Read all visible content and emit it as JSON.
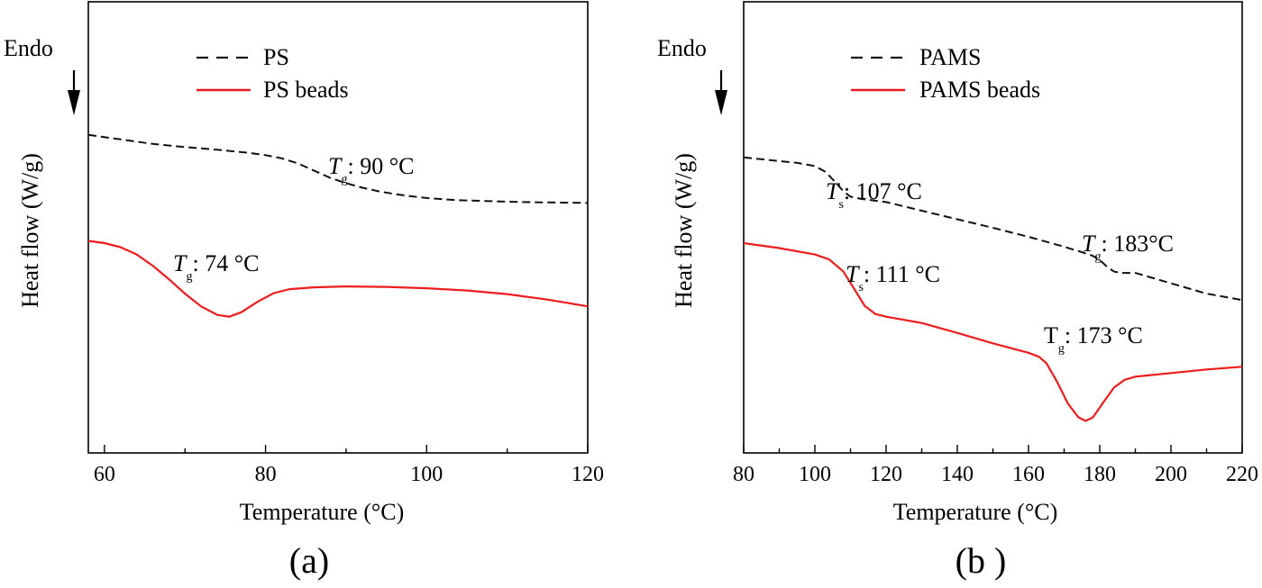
{
  "chart_data": [
    {
      "type": "line",
      "panel_label": "(a)",
      "xlabel": "Temperature (°C)",
      "ylabel": "Heat flow (W/g)",
      "xlim": [
        58,
        120
      ],
      "ylim": [
        0,
        100
      ],
      "x_ticks": [
        60,
        80,
        100,
        120
      ],
      "endo_label": "Endo",
      "series": [
        {
          "name": "PS",
          "style": "dashed",
          "color": "#111111",
          "x": [
            58,
            62,
            66,
            70,
            74,
            78,
            80,
            82,
            84,
            86,
            88,
            90,
            92,
            94,
            96,
            98,
            100,
            104,
            108,
            112,
            116,
            120
          ],
          "y": [
            70.5,
            69.5,
            68.5,
            67.8,
            67.2,
            66.5,
            66,
            65.3,
            64.2,
            62.6,
            61,
            59.8,
            58.8,
            58,
            57.4,
            56.9,
            56.5,
            56,
            55.8,
            55.6,
            55.5,
            55.4
          ]
        },
        {
          "name": "PS beads",
          "style": "solid",
          "color": "#ee1c1c",
          "x": [
            58,
            60,
            62,
            64,
            66,
            68,
            70,
            72,
            74,
            75.5,
            77,
            79,
            81,
            83,
            86,
            90,
            95,
            100,
            105,
            110,
            115,
            120
          ],
          "y": [
            47,
            46.5,
            45.6,
            44,
            41.5,
            38.5,
            35.3,
            32.5,
            30.6,
            30.2,
            31.2,
            33.5,
            35.4,
            36.3,
            36.7,
            36.9,
            36.8,
            36.5,
            36,
            35.2,
            34,
            32.5
          ]
        }
      ],
      "annotations": [
        {
          "symbol": "T",
          "subscript": "g",
          "text": ": 90 °C"
        },
        {
          "symbol": "T",
          "subscript": "g",
          "text": ": 74 °C"
        }
      ]
    },
    {
      "type": "line",
      "panel_label": "(b )",
      "xlabel": "Temperature (°C)",
      "ylabel": "Heat flow (W/g)",
      "xlim": [
        80,
        220
      ],
      "ylim": [
        0,
        100
      ],
      "x_ticks": [
        80,
        100,
        120,
        140,
        160,
        180,
        200,
        220
      ],
      "endo_label": "Endo",
      "series": [
        {
          "name": "PAMS",
          "style": "dashed",
          "color": "#111111",
          "x": [
            80,
            90,
            95,
            100,
            103,
            106,
            108,
            110,
            113,
            116,
            120,
            130,
            140,
            150,
            160,
            170,
            175,
            178,
            180,
            182,
            184,
            186,
            190,
            200,
            210,
            220
          ],
          "y": [
            65.5,
            64.7,
            64.3,
            63.6,
            62.3,
            59.8,
            58,
            56.8,
            56.3,
            56,
            55.6,
            53.7,
            51.8,
            49.9,
            47.9,
            45.7,
            44.5,
            43.7,
            42.8,
            41.3,
            40.2,
            39.9,
            39.9,
            37.6,
            35.3,
            33.9
          ]
        },
        {
          "name": "PAMS beads",
          "style": "solid",
          "color": "#ee1c1c",
          "x": [
            80,
            90,
            100,
            104,
            108,
            111,
            114,
            117,
            120,
            130,
            140,
            150,
            160,
            163,
            165,
            168,
            171,
            174,
            176,
            178,
            181,
            184,
            187,
            190,
            200,
            210,
            220
          ],
          "y": [
            46.5,
            45.4,
            44,
            42.9,
            40.2,
            36.4,
            32.6,
            30.8,
            30.2,
            28.8,
            26.6,
            24.3,
            22.2,
            21.3,
            19.9,
            15.8,
            11,
            7.9,
            7.1,
            7.8,
            11.2,
            14.5,
            16.2,
            16.9,
            17.7,
            18.5,
            19.1
          ]
        }
      ],
      "annotations": [
        {
          "symbol": "T",
          "subscript": "s",
          "text": ": 107 °C"
        },
        {
          "symbol": "T",
          "subscript": "g",
          "text": ": 183°C"
        },
        {
          "symbol": "T",
          "subscript": "s",
          "text": ": 111 °C"
        },
        {
          "symbol": "T",
          "subscript": "g",
          "text": ": 173 °C"
        }
      ]
    }
  ]
}
